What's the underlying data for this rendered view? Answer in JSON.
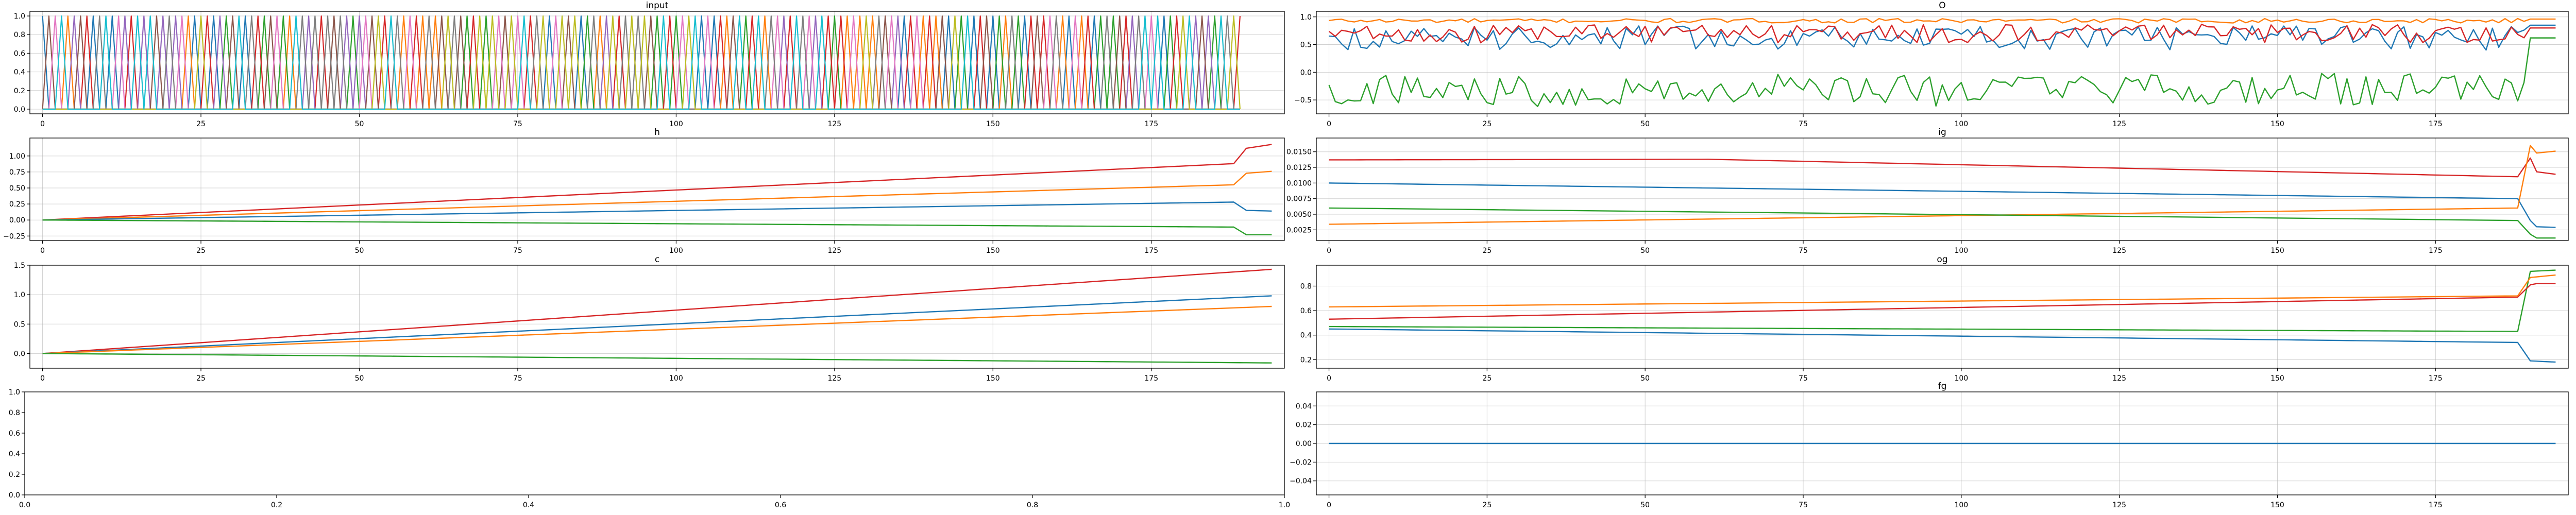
{
  "chart_data": [
    {
      "type": "line",
      "title": "input",
      "xlabel": "",
      "ylabel": "",
      "xlim": [
        -2,
        196
      ],
      "ylim": [
        -0.05,
        1.05
      ],
      "xticks": [
        0,
        25,
        50,
        75,
        100,
        125,
        150,
        175
      ],
      "yticks": [
        0.0,
        0.2,
        0.4,
        0.6,
        0.8,
        1.0
      ],
      "grid": true,
      "series_count": 10,
      "series_points": 190,
      "value_range": [
        0,
        1
      ],
      "series_colors": [
        "#1f77b4",
        "#ff7f0e",
        "#2ca02c",
        "#d62728",
        "#9467bd",
        "#8c564b",
        "#e377c2",
        "#7f7f7f",
        "#bcbd22",
        "#17becf"
      ],
      "description": "one-hot input: at each step one of 10 series is 1, others 0"
    },
    {
      "type": "line",
      "title": "O",
      "xlabel": "",
      "ylabel": "",
      "xlim": [
        -2,
        196
      ],
      "ylim": [
        -0.75,
        1.1
      ],
      "xticks": [
        0,
        25,
        50,
        75,
        100,
        125,
        150,
        175
      ],
      "yticks": [
        -0.5,
        0.0,
        0.5,
        1.0
      ],
      "grid": true,
      "series": [
        {
          "color": "#ff7f0e",
          "base": 0.93,
          "noise": 0.04,
          "end": 0.96
        },
        {
          "color": "#1f77b4",
          "base": 0.62,
          "noise": 0.22,
          "end": 0.85
        },
        {
          "color": "#d62728",
          "base": 0.7,
          "noise": 0.17,
          "end": 0.8
        },
        {
          "color": "#2ca02c",
          "base": -0.32,
          "noise": 0.3,
          "end": 0.62
        }
      ]
    },
    {
      "type": "line",
      "title": "h",
      "xlabel": "",
      "ylabel": "",
      "xlim": [
        -2,
        196
      ],
      "ylim": [
        -0.32,
        1.28
      ],
      "xticks": [
        0,
        25,
        50,
        75,
        100,
        125,
        150,
        175
      ],
      "yticks": [
        -0.25,
        0.0,
        0.25,
        0.5,
        0.75,
        1.0
      ],
      "grid": true,
      "series": [
        {
          "color": "#d62728",
          "points": [
            [
              0,
              0
            ],
            [
              188,
              0.88
            ],
            [
              190,
              1.12
            ],
            [
              194,
              1.18
            ]
          ]
        },
        {
          "color": "#ff7f0e",
          "points": [
            [
              0,
              0
            ],
            [
              188,
              0.55
            ],
            [
              190,
              0.73
            ],
            [
              194,
              0.76
            ]
          ]
        },
        {
          "color": "#1f77b4",
          "points": [
            [
              0,
              0
            ],
            [
              188,
              0.28
            ],
            [
              190,
              0.15
            ],
            [
              194,
              0.14
            ]
          ]
        },
        {
          "color": "#2ca02c",
          "points": [
            [
              0,
              0
            ],
            [
              188,
              -0.11
            ],
            [
              190,
              -0.23
            ],
            [
              194,
              -0.23
            ]
          ]
        }
      ]
    },
    {
      "type": "line",
      "title": "ig",
      "xlabel": "",
      "ylabel": "",
      "xlim": [
        -2,
        196
      ],
      "ylim": [
        0.0008,
        0.0172
      ],
      "xticks": [
        0,
        25,
        50,
        75,
        100,
        125,
        150,
        175
      ],
      "yticks": [
        0.0025,
        0.005,
        0.0075,
        0.01,
        0.0125,
        0.015
      ],
      "grid": true,
      "series": [
        {
          "color": "#d62728",
          "points": [
            [
              0,
              0.0137
            ],
            [
              60,
              0.0138
            ],
            [
              188,
              0.011
            ],
            [
              190,
              0.014
            ],
            [
              191,
              0.0118
            ],
            [
              194,
              0.0114
            ]
          ]
        },
        {
          "color": "#1f77b4",
          "points": [
            [
              0,
              0.01
            ],
            [
              188,
              0.0075
            ],
            [
              190,
              0.004
            ],
            [
              191,
              0.003
            ],
            [
              194,
              0.0029
            ]
          ]
        },
        {
          "color": "#ff7f0e",
          "points": [
            [
              0,
              0.0034
            ],
            [
              188,
              0.006
            ],
            [
              190,
              0.016
            ],
            [
              191,
              0.0148
            ],
            [
              194,
              0.0151
            ]
          ]
        },
        {
          "color": "#2ca02c",
          "points": [
            [
              0,
              0.006
            ],
            [
              188,
              0.004
            ],
            [
              190,
              0.0018
            ],
            [
              191,
              0.0012
            ],
            [
              194,
              0.0012
            ]
          ]
        }
      ]
    },
    {
      "type": "line",
      "title": "c",
      "xlabel": "",
      "ylabel": "",
      "xlim": [
        -2,
        196
      ],
      "ylim": [
        -0.25,
        1.5
      ],
      "xticks": [
        0,
        25,
        50,
        75,
        100,
        125,
        150,
        175
      ],
      "yticks": [
        0.0,
        0.5,
        1.0,
        1.5
      ],
      "grid": true,
      "series": [
        {
          "color": "#d62728",
          "points": [
            [
              0,
              0
            ],
            [
              194,
              1.43
            ]
          ]
        },
        {
          "color": "#1f77b4",
          "points": [
            [
              0,
              0
            ],
            [
              194,
              0.98
            ]
          ]
        },
        {
          "color": "#ff7f0e",
          "points": [
            [
              0,
              0
            ],
            [
              194,
              0.8
            ]
          ]
        },
        {
          "color": "#2ca02c",
          "points": [
            [
              0,
              0
            ],
            [
              194,
              -0.16
            ]
          ]
        }
      ]
    },
    {
      "type": "line",
      "title": "og",
      "xlabel": "",
      "ylabel": "",
      "xlim": [
        -2,
        196
      ],
      "ylim": [
        0.13,
        0.97
      ],
      "xticks": [
        0,
        25,
        50,
        75,
        100,
        125,
        150,
        175
      ],
      "yticks": [
        0.2,
        0.4,
        0.6,
        0.8
      ],
      "grid": true,
      "series": [
        {
          "color": "#2ca02c",
          "points": [
            [
              0,
              0.47
            ],
            [
              188,
              0.43
            ],
            [
              190,
              0.92
            ],
            [
              194,
              0.93
            ]
          ]
        },
        {
          "color": "#d62728",
          "points": [
            [
              0,
              0.53
            ],
            [
              188,
              0.71
            ],
            [
              190,
              0.81
            ],
            [
              191,
              0.82
            ],
            [
              194,
              0.82
            ]
          ]
        },
        {
          "color": "#ff7f0e",
          "points": [
            [
              0,
              0.63
            ],
            [
              188,
              0.72
            ],
            [
              190,
              0.87
            ],
            [
              194,
              0.89
            ]
          ]
        },
        {
          "color": "#1f77b4",
          "points": [
            [
              0,
              0.45
            ],
            [
              188,
              0.34
            ],
            [
              190,
              0.19
            ],
            [
              194,
              0.18
            ]
          ]
        }
      ]
    },
    {
      "type": "line",
      "title": "",
      "xlabel": "",
      "ylabel": "",
      "xlim": [
        0,
        1
      ],
      "ylim": [
        0,
        1
      ],
      "xticks": [
        0.0,
        0.2,
        0.4,
        0.6,
        0.8,
        1.0
      ],
      "yticks": [
        0.0,
        0.2,
        0.4,
        0.6,
        0.8,
        1.0
      ],
      "grid": false,
      "series": []
    },
    {
      "type": "line",
      "title": "fg",
      "xlabel": "",
      "ylabel": "",
      "xlim": [
        -2,
        196
      ],
      "ylim": [
        -0.055,
        0.055
      ],
      "xticks": [
        0,
        25,
        50,
        75,
        100,
        125,
        150,
        175
      ],
      "yticks": [
        -0.04,
        -0.02,
        0.0,
        0.02,
        0.04
      ],
      "grid": true,
      "series": [
        {
          "color": "#1f77b4",
          "points": [
            [
              0,
              0
            ],
            [
              194,
              0
            ]
          ]
        }
      ]
    }
  ]
}
